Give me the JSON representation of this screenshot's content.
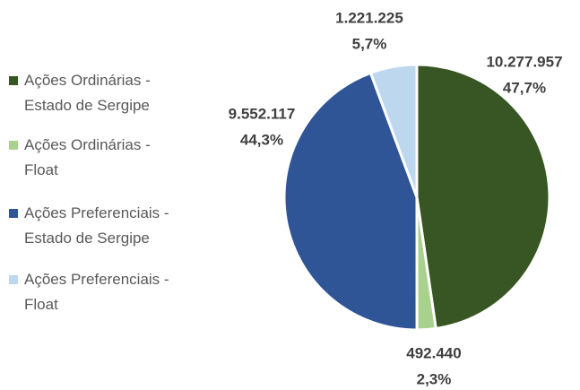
{
  "chart_data": {
    "type": "pie",
    "categories": [
      "Ações Ordinárias - Estado de Sergipe",
      "Ações Ordinárias - Float",
      "Ações Preferenciais - Estado de Sergipe",
      "Ações Preferenciais - Float"
    ],
    "values": [
      10277957,
      492440,
      9552117,
      1221225
    ],
    "value_labels": [
      "10.277.957",
      "492.440",
      "9.552.117",
      "1.221.225"
    ],
    "percentages": [
      47.7,
      2.3,
      44.3,
      5.7
    ],
    "percentage_labels": [
      "47,7%",
      "2,3%",
      "44,3%",
      "5,7%"
    ],
    "colors": [
      "#375623",
      "#a9d18e",
      "#2f5597",
      "#bdd7ee"
    ],
    "legend": "left"
  }
}
